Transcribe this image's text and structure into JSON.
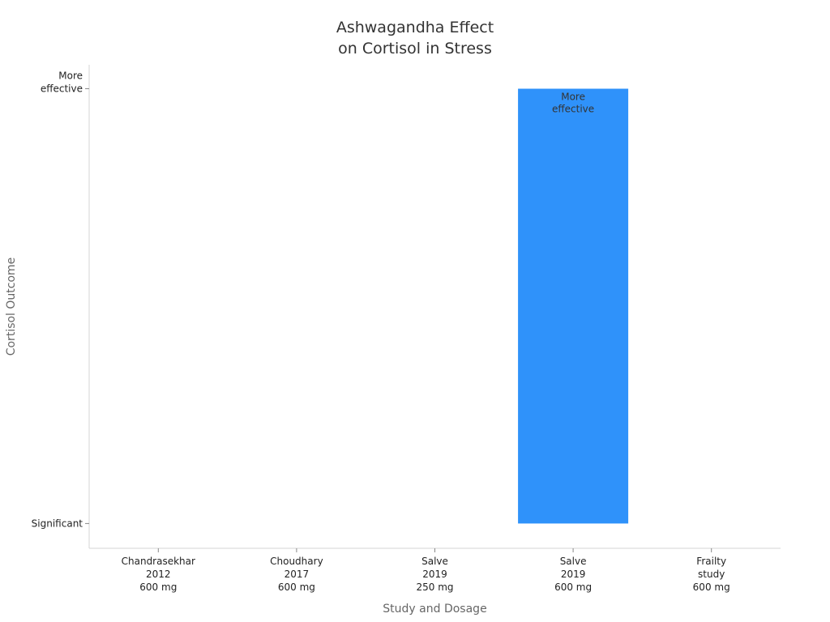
{
  "chart_data": {
    "type": "bar",
    "title_lines": [
      "Ashwagandha Effect",
      "on Cortisol in Stress"
    ],
    "xlabel": "Study and Dosage",
    "ylabel": "Cortisol Outcome",
    "categories": [
      {
        "id": "chandrasekhar-2012",
        "lines": [
          "Chandrasekhar",
          "2012",
          "600 mg"
        ]
      },
      {
        "id": "choudhary-2017",
        "lines": [
          "Choudhary",
          "2017",
          "600 mg"
        ]
      },
      {
        "id": "salve-2019-250",
        "lines": [
          "Salve",
          "2019",
          "250 mg"
        ]
      },
      {
        "id": "salve-2019-600",
        "lines": [
          "Salve",
          "2019",
          "600 mg"
        ]
      },
      {
        "id": "frailty-study",
        "lines": [
          "Frailty",
          "study",
          "600 mg"
        ]
      }
    ],
    "y_levels": [
      {
        "value": 0,
        "lines": [
          "Significant"
        ]
      },
      {
        "value": 1,
        "lines": [
          "More",
          "effective"
        ]
      }
    ],
    "values": [
      0,
      0,
      0,
      1,
      0
    ],
    "data_labels": [
      null,
      null,
      null,
      [
        "More",
        "effective"
      ],
      null
    ],
    "ylim": [
      -0.057,
      1.055
    ],
    "bar_color": "#2f92fa",
    "grid": false,
    "legend": "none"
  }
}
